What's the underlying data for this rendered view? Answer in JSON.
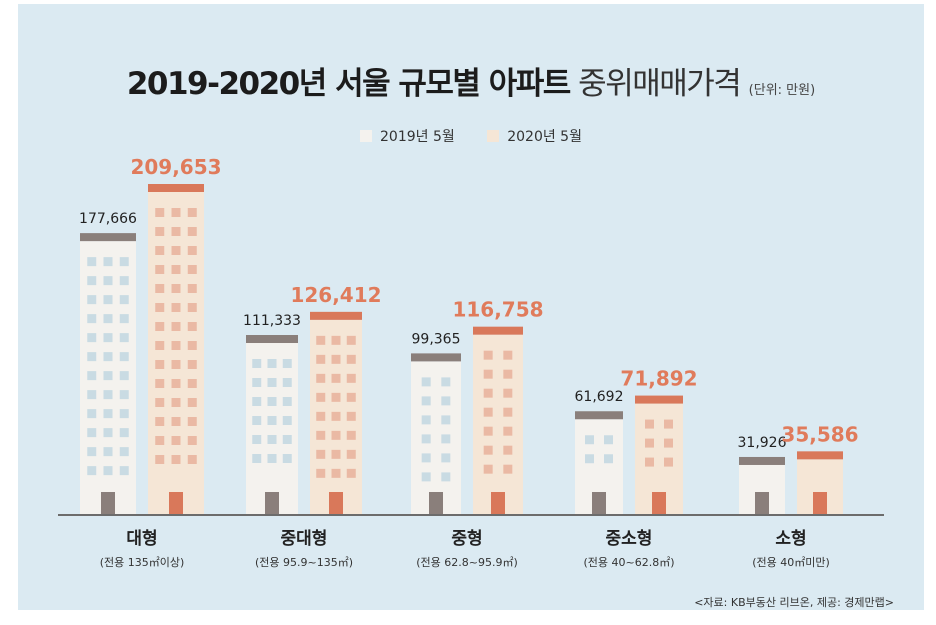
{
  "title": {
    "bold": "2019-2020년 서울 규모별 아파트",
    "light": "중위매매가격",
    "unit": "(단위: 만원)"
  },
  "legend": [
    {
      "label": "2019년 5월",
      "color": "#f4f2ee"
    },
    {
      "label": "2020년 5월",
      "color": "#f5e6d6"
    }
  ],
  "colors": {
    "background": "#dbeaf2",
    "building_2019": "#f4f2ee",
    "building_2020": "#f5e6d6",
    "roof_2019": "#8a7f7b",
    "roof_2020": "#d9785a",
    "window_2019": "#c9dbe3",
    "window_2020": "#eab9a4",
    "value_2019": "#222222",
    "value_2020": "#e07b5b"
  },
  "chart_data": {
    "type": "bar",
    "title": "2019-2020년 서울 규모별 아파트 중위매매가격",
    "unit": "(단위: 만원)",
    "categories": [
      "대형",
      "중대형",
      "중형",
      "중소형",
      "소형"
    ],
    "subcategories": [
      "(전용 135㎡이상)",
      "(전용 95.9~135㎡)",
      "(전용 62.8~95.9㎡)",
      "(전용 40~62.8㎡)",
      "(전용 40㎡미만)"
    ],
    "series": [
      {
        "name": "2019년 5월",
        "values": [
          177666,
          111333,
          99365,
          61692,
          31926
        ]
      },
      {
        "name": "2020년 5월",
        "values": [
          209653,
          126412,
          116758,
          71892,
          35586
        ]
      }
    ],
    "value_labels": [
      [
        "177,666",
        "111,333",
        "99,365",
        "61,692",
        "31,926"
      ],
      [
        "209,653",
        "126,412",
        "116,758",
        "71,892",
        "35,586"
      ]
    ],
    "legend_position": "top-center"
  },
  "source": "<자료: KB부동산 리브온, 제공: 경제만랩>"
}
